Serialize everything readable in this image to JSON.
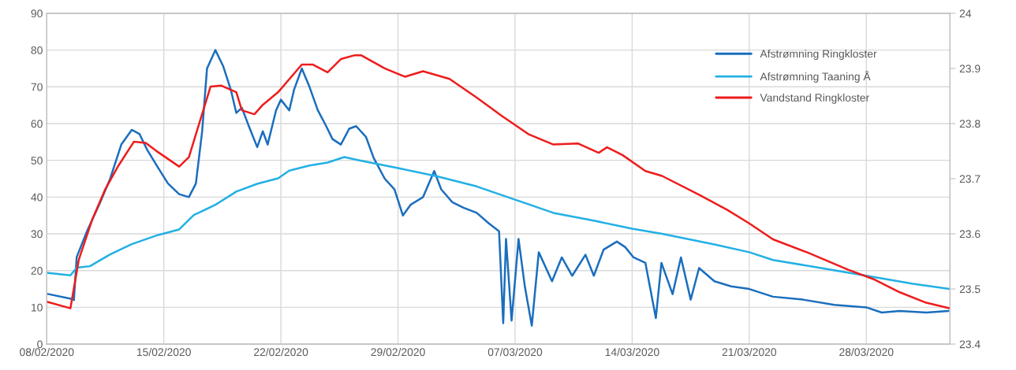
{
  "chart_data": {
    "type": "line",
    "xlim": [
      "2020-02-08",
      "2020-04-02"
    ],
    "xticks": [
      {
        "value": "2020-02-08",
        "label": "08/02/2020"
      },
      {
        "value": "2020-02-15",
        "label": "15/02/2020"
      },
      {
        "value": "2020-02-22",
        "label": "22/02/2020"
      },
      {
        "value": "2020-02-29",
        "label": "29/02/2020"
      },
      {
        "value": "2020-03-07",
        "label": "07/03/2020"
      },
      {
        "value": "2020-03-14",
        "label": "14/03/2020"
      },
      {
        "value": "2020-03-21",
        "label": "21/03/2020"
      },
      {
        "value": "2020-03-28",
        "label": "28/03/2020"
      }
    ],
    "ylim": [
      0,
      90
    ],
    "yticks": [
      0,
      10,
      20,
      30,
      40,
      50,
      60,
      70,
      80,
      90
    ],
    "y2lim": [
      23.4,
      24
    ],
    "y2ticks": [
      23.4,
      23.5,
      23.6,
      23.7,
      23.8,
      23.9,
      {
        "value": 24,
        "label": "24"
      }
    ],
    "grid": true,
    "legend": "top right",
    "marker": "none",
    "line_style": "solid",
    "series": [
      {
        "name": "Afstrømning Ringkloster",
        "color": "#1a6ebd",
        "x": [
          "2020-02-08T00:00",
          "2020-02-09T12:00",
          "2020-02-09T15:00",
          "2020-02-09T19:00",
          "2020-02-10T10:00",
          "2020-02-11T05:00",
          "2020-02-11T19:00",
          "2020-02-12T11:00",
          "2020-02-13T02:00",
          "2020-02-13T13:00",
          "2020-02-14T00:00",
          "2020-02-14T16:00",
          "2020-02-15T06:00",
          "2020-02-15T22:00",
          "2020-02-16T12:00",
          "2020-02-16T22:00",
          "2020-02-17T07:00",
          "2020-02-17T14:00",
          "2020-02-18T02:00",
          "2020-02-18T13:00",
          "2020-02-19T00:00",
          "2020-02-19T08:00",
          "2020-02-19T16:00",
          "2020-02-20T02:00",
          "2020-02-20T14:00",
          "2020-02-20T22:00",
          "2020-02-21T05:00",
          "2020-02-21T17:00",
          "2020-02-22T00:00",
          "2020-02-22T12:00",
          "2020-02-22T19:00",
          "2020-02-23T06:00",
          "2020-02-23T17:00",
          "2020-02-24T05:00",
          "2020-02-24T17:00",
          "2020-02-25T02:00",
          "2020-02-25T14:00",
          "2020-02-26T02:00",
          "2020-02-26T12:00",
          "2020-02-27T02:00",
          "2020-02-27T13:00",
          "2020-02-28T05:00",
          "2020-02-28T19:00",
          "2020-02-29T07:00",
          "2020-02-29T18:00",
          "2020-03-01T12:00",
          "2020-03-02T04:00",
          "2020-03-02T14:00",
          "2020-03-03T06:00",
          "2020-03-03T22:00",
          "2020-03-04T17:00",
          "2020-03-05T10:00",
          "2020-03-06T01:00",
          "2020-03-06T07:00",
          "2020-03-06T11:00",
          "2020-03-06T19:00",
          "2020-03-07T05:00",
          "2020-03-07T14:00",
          "2020-03-08T00:00",
          "2020-03-08T10:00",
          "2020-03-09T05:00",
          "2020-03-09T19:00",
          "2020-03-10T10:00",
          "2020-03-11T05:00",
          "2020-03-11T17:00",
          "2020-03-12T07:00",
          "2020-03-13T02:00",
          "2020-03-13T14:00",
          "2020-03-14T02:00",
          "2020-03-14T19:00",
          "2020-03-15T10:00",
          "2020-03-15T18:00",
          "2020-03-16T10:00",
          "2020-03-16T22:00",
          "2020-03-17T12:00",
          "2020-03-18T00:00",
          "2020-03-18T22:00",
          "2020-03-19T22:00",
          "2020-03-21T00:00",
          "2020-03-22T10:00",
          "2020-03-24T05:00",
          "2020-03-26T02:00",
          "2020-03-28T00:00",
          "2020-03-28T22:00",
          "2020-03-30T00:00",
          "2020-03-31T14:00",
          "2020-04-01T22:00"
        ],
        "values": [
          13.7,
          12.3,
          12.0,
          23.7,
          30.8,
          38.7,
          45,
          54.3,
          58.3,
          57.2,
          52.9,
          47.9,
          43.7,
          40.8,
          40,
          43.7,
          57.9,
          75,
          80,
          75.7,
          69.3,
          62.9,
          64.3,
          59.3,
          53.6,
          57.9,
          54.3,
          63.6,
          66.5,
          63.6,
          69.3,
          75,
          70,
          63.6,
          59.3,
          55.8,
          54.3,
          58.6,
          59.3,
          56.4,
          50.7,
          45,
          42.1,
          35,
          37.9,
          40,
          47.1,
          42.1,
          38.6,
          37.1,
          35.7,
          32.9,
          30.7,
          5.7,
          28.6,
          6.4,
          28.6,
          15.7,
          5,
          25,
          17.1,
          23.6,
          18.6,
          24.3,
          18.6,
          25.7,
          27.9,
          26.4,
          23.6,
          22.1,
          7.1,
          22.1,
          13.6,
          23.6,
          12.1,
          20.7,
          17.1,
          15.7,
          15,
          12.9,
          12.1,
          10.7,
          10,
          8.6,
          9,
          8.6,
          9
        ]
      },
      {
        "name": "Afstrømning Taaning Å",
        "color": "#22b0e4",
        "x": [
          "2020-02-08T00:00",
          "2020-02-09T10:00",
          "2020-02-09T19:00",
          "2020-02-10T14:00",
          "2020-02-11T19:00",
          "2020-02-13T02:00",
          "2020-02-14T16:00",
          "2020-02-15T22:00",
          "2020-02-16T19:00",
          "2020-02-18T02:00",
          "2020-02-19T08:00",
          "2020-02-20T14:00",
          "2020-02-21T20:00",
          "2020-02-22T12:00",
          "2020-02-23T17:00",
          "2020-02-24T19:00",
          "2020-02-25T19:00",
          "2020-02-26T14:00",
          "2020-02-29T00:00",
          "2020-03-02T07:00",
          "2020-03-04T17:00",
          "2020-03-07T00:00",
          "2020-03-09T07:00",
          "2020-03-11T17:00",
          "2020-03-14T00:00",
          "2020-03-15T19:00",
          "2020-03-18T22:00",
          "2020-03-21T00:00",
          "2020-03-22T10:00",
          "2020-03-25T07:00",
          "2020-03-28T00:00",
          "2020-03-30T19:00",
          "2020-04-01T23:00"
        ],
        "values": [
          19.4,
          18.7,
          20.8,
          21.2,
          24.4,
          27.2,
          29.7,
          31.2,
          35.1,
          37.9,
          41.5,
          43.6,
          45.1,
          47.2,
          48.6,
          49.4,
          50.9,
          50.1,
          47.9,
          45.7,
          42.9,
          39.3,
          35.7,
          33.6,
          31.4,
          30,
          27.1,
          25,
          22.9,
          20.7,
          18.6,
          16.4,
          15
        ]
      },
      {
        "name": "Vandstand Ringkloster",
        "color": "#ee1c1c",
        "axis": "y2",
        "x": [
          "2020-02-08T00:00",
          "2020-02-09T10:00",
          "2020-02-09T22:00",
          "2020-02-10T17:00",
          "2020-02-11T12:00",
          "2020-02-12T07:00",
          "2020-02-13T05:00",
          "2020-02-13T22:00",
          "2020-02-14T16:00",
          "2020-02-15T22:00",
          "2020-02-16T12:00",
          "2020-02-17T04:00",
          "2020-02-17T19:00",
          "2020-02-18T10:00",
          "2020-02-19T08:00",
          "2020-02-19T16:00",
          "2020-02-20T10:00",
          "2020-02-20T22:00",
          "2020-02-21T20:00",
          "2020-02-23T06:00",
          "2020-02-23T22:00",
          "2020-02-24T19:00",
          "2020-02-25T14:00",
          "2020-02-26T10:00",
          "2020-02-26T19:00",
          "2020-02-28T05:00",
          "2020-02-29T10:00",
          "2020-03-01T12:00",
          "2020-03-03T02:00",
          "2020-03-04T17:00",
          "2020-03-06T05:00",
          "2020-03-07T19:00",
          "2020-03-09T07:00",
          "2020-03-10T18:00",
          "2020-03-12T00:00",
          "2020-03-12T12:00",
          "2020-03-13T10:00",
          "2020-03-14T19:00",
          "2020-03-15T19:00",
          "2020-03-18T00:00",
          "2020-03-19T17:00",
          "2020-03-21T00:00",
          "2020-03-22T10:00",
          "2020-03-24T12:00",
          "2020-03-26T22:00",
          "2020-03-28T10:00",
          "2020-03-30T00:00",
          "2020-03-31T14:00",
          "2020-04-01T23:00"
        ],
        "values": [
          23.477,
          23.465,
          23.553,
          23.625,
          23.681,
          23.724,
          23.767,
          23.765,
          23.748,
          23.722,
          23.739,
          23.805,
          23.867,
          23.869,
          23.857,
          23.824,
          23.817,
          23.834,
          23.857,
          23.907,
          23.907,
          23.893,
          23.917,
          23.924,
          23.924,
          23.9,
          23.885,
          23.895,
          23.881,
          23.847,
          23.814,
          23.781,
          23.762,
          23.764,
          23.747,
          23.757,
          23.743,
          23.714,
          23.705,
          23.671,
          23.643,
          23.619,
          23.59,
          23.566,
          23.535,
          23.518,
          23.494,
          23.475,
          23.465
        ]
      }
    ]
  }
}
